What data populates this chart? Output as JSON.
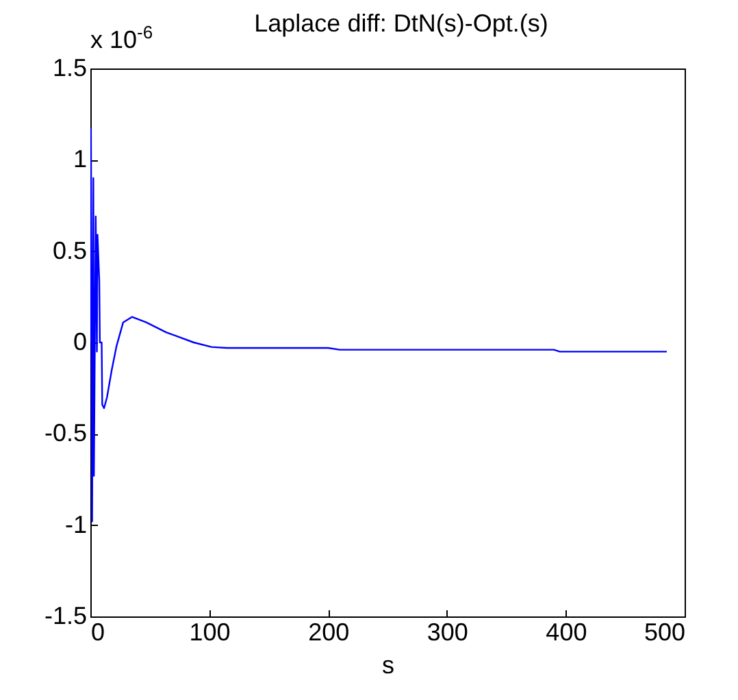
{
  "chart_data": {
    "type": "line",
    "title": "Laplace diff: DtN(s)-Opt.(s)",
    "xlabel": "s",
    "annotations": [
      "x 10$^{-6}$"
    ],
    "x": [
      0,
      0.5,
      1.5,
      2.5,
      3,
      4.5,
      5.5,
      6,
      7.5,
      8,
      9.5,
      10,
      11.5,
      14,
      18,
      22,
      27.6,
      35,
      47,
      64,
      87,
      102,
      115,
      200,
      210,
      390,
      395,
      485
    ],
    "series": [
      {
        "color": "#0000ff",
        "values": [
          0,
          1.17,
          -0.98,
          0.9,
          -0.73,
          0.69,
          -0.05,
          0.59,
          0.34,
          0,
          0,
          -0.34,
          -0.36,
          -0.3,
          -0.15,
          -0.02,
          0.11,
          0.14,
          0.11,
          0.055,
          0,
          -0.025,
          -0.03,
          -0.03,
          -0.04,
          -0.04,
          -0.05,
          -0.05
        ]
      }
    ],
    "xlim": [
      0,
      500
    ],
    "xticks": [
      0,
      100,
      200,
      300,
      400,
      500
    ],
    "ylim": [
      -1.5,
      1.5
    ],
    "yticks": [
      -1.5,
      -1,
      -0.5,
      0,
      0.5,
      1,
      1.5
    ],
    "grid": false,
    "marker": "none",
    "line_style": "solid"
  }
}
